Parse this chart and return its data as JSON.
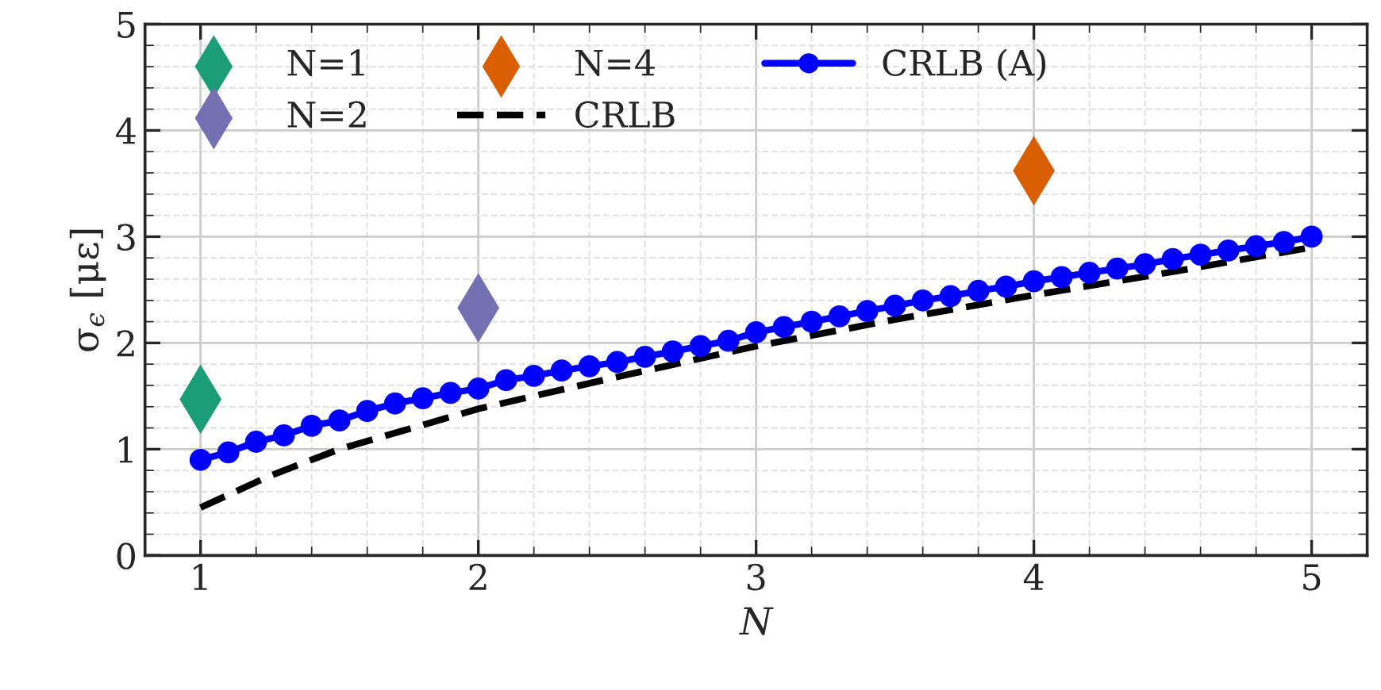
{
  "chart_data": {
    "type": "line",
    "xlabel": "N",
    "ylabel": "σ$_{ϵ}$ [με]",
    "xlim": [
      0.8,
      5.2
    ],
    "ylim": [
      0,
      5
    ],
    "xticks": [
      1,
      2,
      3,
      4,
      5
    ],
    "yticks": [
      0,
      1,
      2,
      3,
      4,
      5
    ],
    "grid": true,
    "legend": "top left",
    "series": [
      {
        "name": "N=1",
        "type": "scatter",
        "marker": "diamond",
        "color": "#1b9e77",
        "x": [
          1
        ],
        "values": [
          1.47
        ]
      },
      {
        "name": "N=2",
        "type": "scatter",
        "marker": "diamond",
        "color": "#7570b3",
        "x": [
          2
        ],
        "values": [
          2.33
        ]
      },
      {
        "name": "N=4",
        "type": "scatter",
        "marker": "diamond",
        "color": "#d95f02",
        "x": [
          4
        ],
        "values": [
          3.62
        ]
      },
      {
        "name": "CRLB",
        "line_style": "dashed",
        "marker": "none",
        "color": "#000000",
        "x": [
          1,
          1.25,
          1.5,
          2,
          2.5,
          3,
          3.5,
          4,
          4.5,
          5
        ],
        "values": [
          0.45,
          0.75,
          1.0,
          1.38,
          1.68,
          1.97,
          2.22,
          2.45,
          2.67,
          2.9
        ]
      },
      {
        "name": "CRLB (A)",
        "line_style": "solid",
        "marker": "circle",
        "color": "#0000ff",
        "x": [
          1,
          1.1,
          1.2,
          1.3,
          1.4,
          1.5,
          1.6,
          1.7,
          1.8,
          1.9,
          2,
          2.1,
          2.2,
          2.3,
          2.4,
          2.5,
          2.6,
          2.7,
          2.8,
          2.9,
          3,
          3.1,
          3.2,
          3.3,
          3.4,
          3.5,
          3.6,
          3.7,
          3.8,
          3.9,
          4,
          4.1,
          4.2,
          4.3,
          4.4,
          4.5,
          4.6,
          4.7,
          4.8,
          4.9,
          5
        ],
        "values": [
          0.9,
          0.97,
          1.07,
          1.13,
          1.22,
          1.27,
          1.36,
          1.43,
          1.48,
          1.53,
          1.57,
          1.65,
          1.69,
          1.74,
          1.78,
          1.82,
          1.87,
          1.92,
          1.97,
          2.02,
          2.1,
          2.15,
          2.2,
          2.25,
          2.3,
          2.35,
          2.4,
          2.44,
          2.49,
          2.53,
          2.58,
          2.62,
          2.66,
          2.7,
          2.74,
          2.79,
          2.83,
          2.87,
          2.91,
          2.95,
          3.0
        ]
      }
    ]
  }
}
